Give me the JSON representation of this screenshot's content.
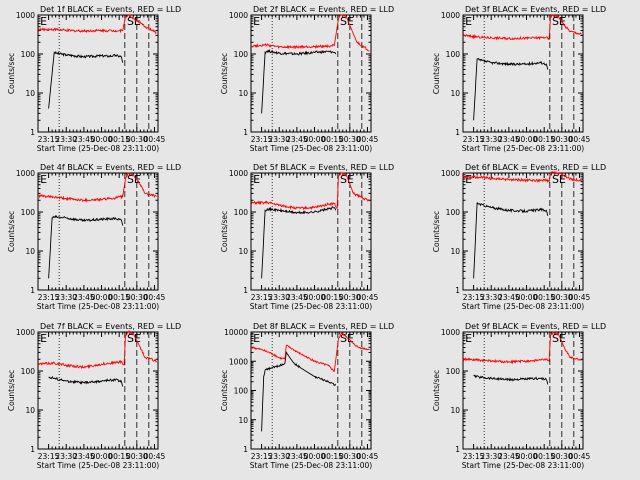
{
  "figure": {
    "background": "#e6e6e6",
    "series_colors": {
      "events": "#000000",
      "lld": "#ff0000"
    }
  },
  "chart_data": [
    {
      "type": "line",
      "scale": "log",
      "title": "Det 1f BLACK = Events, RED = LLD",
      "xlabel": "Start Time (25-Dec-08 23:11:00)",
      "ylabel": "Counts/sec",
      "xticks": [
        "23:15",
        "23:30",
        "23:45",
        "00:00",
        "00:15",
        "00:30",
        "00:45"
      ],
      "yticks": [
        "1",
        "10",
        "100",
        "1000"
      ],
      "ylim": [
        1,
        1000
      ],
      "markers": [
        "E",
        "SE"
      ],
      "series": [
        {
          "name": "Events",
          "color": "#000000",
          "x": [
            23.25,
            23.33,
            23.36,
            23.5,
            23.75,
            24.0,
            24.1,
            24.2,
            24.28,
            24.3
          ],
          "y": [
            4,
            110,
            105,
            95,
            85,
            90,
            88,
            92,
            85,
            60
          ]
        },
        {
          "name": "LLD",
          "color": "#ff0000",
          "x": [
            23.1,
            23.33,
            23.5,
            23.75,
            24.0,
            24.2,
            24.3,
            24.34,
            24.38,
            24.45,
            24.62,
            24.78
          ],
          "y": [
            420,
            430,
            400,
            390,
            400,
            395,
            400,
            920,
            1000,
            820,
            500,
            350
          ]
        }
      ]
    },
    {
      "type": "line",
      "scale": "log",
      "title": "Det 2f BLACK = Events, RED = LLD",
      "xlabel": "Start Time (25-Dec-08 23:11:00)",
      "ylabel": "Counts/sec",
      "xticks": [
        "23:15",
        "23:30",
        "23:45",
        "00:00",
        "00:15",
        "00:30",
        "00:45"
      ],
      "yticks": [
        "1",
        "10",
        "100",
        "1000"
      ],
      "ylim": [
        1,
        1000
      ],
      "markers": [
        "E",
        "SE"
      ],
      "series": [
        {
          "name": "Events",
          "color": "#000000",
          "x": [
            23.25,
            23.3,
            23.33,
            23.5,
            23.75,
            24.0,
            24.2,
            24.28,
            24.3
          ],
          "y": [
            3,
            110,
            120,
            105,
            100,
            110,
            115,
            110,
            100
          ]
        },
        {
          "name": "LLD",
          "color": "#ff0000",
          "x": [
            23.1,
            23.33,
            23.5,
            23.75,
            24.0,
            24.2,
            24.28,
            24.34,
            24.38,
            24.45,
            24.6,
            24.7,
            24.78
          ],
          "y": [
            160,
            170,
            150,
            150,
            155,
            160,
            165,
            800,
            1000,
            900,
            200,
            150,
            120
          ]
        }
      ]
    },
    {
      "type": "line",
      "scale": "log",
      "title": "Det 3f BLACK = Events, RED = LLD",
      "xlabel": "Start Time (25-Dec-08 23:11:00)",
      "ylabel": "Counts/sec",
      "xticks": [
        "23:15",
        "23:30",
        "23:45",
        "00:00",
        "00:15",
        "00:30",
        "00:45"
      ],
      "yticks": [
        "1",
        "10",
        "100",
        "1000"
      ],
      "ylim": [
        1,
        1000
      ],
      "markers": [
        "E",
        "SE"
      ],
      "series": [
        {
          "name": "Events",
          "color": "#000000",
          "x": [
            23.25,
            23.3,
            23.33,
            23.5,
            23.75,
            24.0,
            24.2,
            24.28,
            24.3
          ],
          "y": [
            2,
            75,
            70,
            60,
            55,
            55,
            60,
            55,
            40
          ]
        },
        {
          "name": "LLD",
          "color": "#ff0000",
          "x": [
            23.1,
            23.33,
            23.5,
            23.75,
            24.0,
            24.2,
            24.28,
            24.32,
            24.34,
            24.38,
            24.45,
            24.55,
            24.62,
            24.78
          ],
          "y": [
            300,
            270,
            260,
            250,
            255,
            260,
            270,
            230,
            900,
            1000,
            920,
            500,
            380,
            320
          ]
        }
      ]
    },
    {
      "type": "line",
      "scale": "log",
      "title": "Det 4f BLACK = Events, RED = LLD",
      "xlabel": "Start Time (25-Dec-08 23:11:00)",
      "ylabel": "Counts/sec",
      "xticks": [
        "23:15",
        "23:30",
        "23:45",
        "00:00",
        "00:15",
        "00:30",
        "00:45"
      ],
      "yticks": [
        "1",
        "10",
        "100",
        "1000"
      ],
      "ylim": [
        1,
        1000
      ],
      "markers": [
        "E",
        "SE"
      ],
      "series": [
        {
          "name": "Events",
          "color": "#000000",
          "x": [
            23.25,
            23.3,
            23.33,
            23.5,
            23.75,
            24.0,
            24.2,
            24.28,
            24.3
          ],
          "y": [
            2,
            70,
            75,
            70,
            60,
            65,
            68,
            62,
            45
          ]
        },
        {
          "name": "LLD",
          "color": "#ff0000",
          "x": [
            23.1,
            23.33,
            23.5,
            23.75,
            24.0,
            24.2,
            24.3,
            24.34,
            24.38,
            24.45,
            24.55,
            24.62,
            24.78
          ],
          "y": [
            260,
            240,
            220,
            200,
            210,
            230,
            250,
            700,
            1000,
            900,
            500,
            300,
            250
          ]
        }
      ]
    },
    {
      "type": "line",
      "scale": "log",
      "title": "Det 5f BLACK = Events, RED = LLD",
      "xlabel": "Start Time (25-Dec-08 23:11:00)",
      "ylabel": "Counts/sec",
      "xticks": [
        "23:15",
        "23:30",
        "23:45",
        "00:00",
        "00:15",
        "00:30",
        "00:45"
      ],
      "yticks": [
        "1",
        "10",
        "100",
        "1000"
      ],
      "ylim": [
        1,
        1000
      ],
      "markers": [
        "E",
        "SE"
      ],
      "series": [
        {
          "name": "Events",
          "color": "#000000",
          "x": [
            23.25,
            23.3,
            23.33,
            23.5,
            23.75,
            24.0,
            24.2,
            24.28,
            24.3
          ],
          "y": [
            2,
            110,
            120,
            110,
            95,
            100,
            120,
            130,
            110
          ]
        },
        {
          "name": "LLD",
          "color": "#ff0000",
          "x": [
            23.1,
            23.33,
            23.5,
            23.75,
            24.0,
            24.2,
            24.28,
            24.32,
            24.34,
            24.38,
            24.45,
            24.55,
            24.78
          ],
          "y": [
            170,
            175,
            150,
            125,
            130,
            160,
            165,
            120,
            850,
            1000,
            900,
            300,
            190
          ]
        }
      ]
    },
    {
      "type": "line",
      "scale": "log",
      "title": "Det 6f BLACK = Events, RED = LLD",
      "xlabel": "Start Time (25-Dec-08 23:11:00)",
      "ylabel": "Counts/sec",
      "xticks": [
        "23:15",
        "23:30",
        "23:45",
        "00:00",
        "00:15",
        "00:30",
        "00:45"
      ],
      "yticks": [
        "1",
        "10",
        "100",
        "1000"
      ],
      "ylim": [
        1,
        1000
      ],
      "markers": [
        "E",
        "SE"
      ],
      "series": [
        {
          "name": "Events",
          "color": "#000000",
          "x": [
            23.25,
            23.3,
            23.33,
            23.5,
            23.75,
            24.0,
            24.2,
            24.28,
            24.3
          ],
          "y": [
            2,
            170,
            160,
            130,
            110,
            105,
            115,
            110,
            80
          ]
        },
        {
          "name": "LLD",
          "color": "#ff0000",
          "x": [
            23.1,
            23.33,
            23.5,
            23.75,
            24.0,
            24.2,
            24.28,
            24.32,
            24.34,
            24.38,
            24.45,
            24.55,
            24.62,
            24.78
          ],
          "y": [
            800,
            780,
            720,
            680,
            650,
            640,
            650,
            600,
            1000,
            1050,
            1000,
            820,
            700,
            650
          ]
        }
      ]
    },
    {
      "type": "line",
      "scale": "log",
      "title": "Det 7f BLACK = Events, RED = LLD",
      "xlabel": "Start Time (25-Dec-08 23:11:00)",
      "ylabel": "Counts/sec",
      "xticks": [
        "23:15",
        "23:30",
        "23:45",
        "00:00",
        "00:15",
        "00:30",
        "00:45"
      ],
      "yticks": [
        "1",
        "10",
        "100",
        "1000"
      ],
      "ylim": [
        1,
        1000
      ],
      "markers": [
        "E",
        "SE"
      ],
      "series": [
        {
          "name": "Events",
          "color": "#000000",
          "x": [
            23.25,
            23.33,
            23.5,
            23.75,
            24.0,
            24.2,
            24.28,
            24.3
          ],
          "y": [
            70,
            65,
            55,
            50,
            55,
            60,
            55,
            40
          ]
        },
        {
          "name": "LLD",
          "color": "#ff0000",
          "x": [
            23.1,
            23.33,
            23.5,
            23.75,
            24.0,
            24.2,
            24.28,
            24.32,
            24.34,
            24.38,
            24.45,
            24.55,
            24.62,
            24.78
          ],
          "y": [
            150,
            160,
            140,
            125,
            150,
            165,
            170,
            140,
            800,
            1000,
            900,
            400,
            220,
            180
          ]
        }
      ]
    },
    {
      "type": "line",
      "scale": "log",
      "title": "Det 8f BLACK = Events, RED = LLD",
      "xlabel": "Start Time (25-Dec-08 23:11:00)",
      "ylabel": "Counts/sec",
      "xticks": [
        "23:15",
        "23:30",
        "23:45",
        "00:00",
        "00:15",
        "00:30",
        "00:45"
      ],
      "yticks": [
        "1",
        "10",
        "100",
        "1000",
        "10000"
      ],
      "ylim": [
        1,
        10000
      ],
      "markers": [
        "E",
        "SE"
      ],
      "series": [
        {
          "name": "Events",
          "color": "#000000",
          "x": [
            23.25,
            23.28,
            23.3,
            23.4,
            23.5,
            23.58,
            23.6,
            23.7,
            23.8,
            24.0,
            24.2,
            24.3
          ],
          "y": [
            4,
            300,
            500,
            600,
            700,
            850,
            2000,
            900,
            600,
            300,
            200,
            150
          ]
        },
        {
          "name": "LLD",
          "color": "#ff0000",
          "x": [
            23.1,
            23.25,
            23.4,
            23.5,
            23.58,
            23.6,
            23.7,
            23.8,
            24.0,
            24.2,
            24.28,
            24.34,
            24.38,
            24.45,
            24.55,
            24.62,
            24.78
          ],
          "y": [
            3000,
            2500,
            1800,
            1300,
            1200,
            3500,
            2500,
            1800,
            1000,
            700,
            450,
            6000,
            9000,
            7000,
            4000,
            3000,
            2500
          ]
        }
      ]
    },
    {
      "type": "line",
      "scale": "log",
      "title": "Det 9f BLACK = Events, RED = LLD",
      "xlabel": "Start Time (25-Dec-08 23:11:00)",
      "ylabel": "Counts/sec",
      "xticks": [
        "23:15",
        "23:30",
        "23:45",
        "00:00",
        "00:15",
        "00:30",
        "00:45"
      ],
      "yticks": [
        "1",
        "10",
        "100",
        "1000"
      ],
      "ylim": [
        1,
        1000
      ],
      "markers": [
        "E",
        "SE"
      ],
      "series": [
        {
          "name": "Events",
          "color": "#000000",
          "x": [
            23.25,
            23.33,
            23.5,
            23.75,
            24.0,
            24.2,
            24.28,
            24.3
          ],
          "y": [
            75,
            70,
            65,
            60,
            62,
            65,
            60,
            45
          ]
        },
        {
          "name": "LLD",
          "color": "#ff0000",
          "x": [
            23.1,
            23.33,
            23.5,
            23.75,
            24.0,
            24.2,
            24.28,
            24.32,
            24.34,
            24.38,
            24.45,
            24.55,
            24.62,
            24.78
          ],
          "y": [
            200,
            190,
            180,
            170,
            180,
            190,
            200,
            180,
            800,
            1000,
            900,
            350,
            220,
            190
          ]
        }
      ]
    }
  ]
}
